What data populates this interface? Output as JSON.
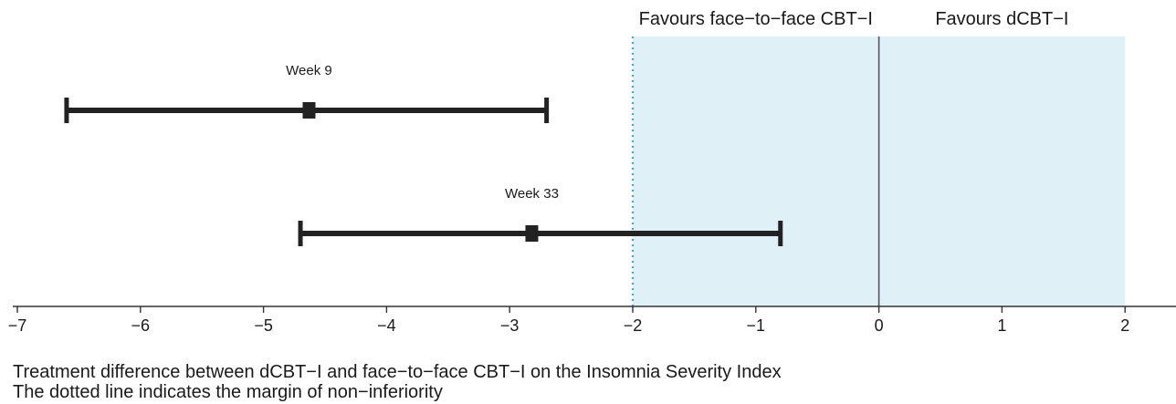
{
  "chart_data": {
    "type": "forest",
    "x_axis": {
      "range": [
        -7,
        2.4
      ],
      "ticks": [
        -7,
        -6,
        -5,
        -4,
        -3,
        -2,
        -1,
        0,
        1,
        2
      ],
      "tick_labels": [
        "−7",
        "−6",
        "−5",
        "−4",
        "−3",
        "−2",
        "−1",
        "0",
        "1",
        "2"
      ]
    },
    "shaded_region": {
      "from": -2,
      "to": 2,
      "color": "#dff0f7"
    },
    "non_inferiority_margin": {
      "x": -2,
      "style": "dotted",
      "color": "#3aa7d6"
    },
    "reference_line": {
      "x": 0,
      "color": "#555555"
    },
    "region_labels": [
      {
        "text": "Favours face−to−face CBT−I",
        "x": -1
      },
      {
        "text": "Favours dCBT−I",
        "x": 1
      }
    ],
    "series": [
      {
        "label": "Week 9",
        "estimate": -4.63,
        "ci_low": -6.6,
        "ci_high": -2.7
      },
      {
        "label": "Week 33",
        "estimate": -2.82,
        "ci_low": -4.7,
        "ci_high": -0.8
      }
    ],
    "mark_color": "#222222"
  },
  "captions": {
    "line1": "Treatment difference between dCBT−I and face−to−face CBT−I on the Insomnia Severity Index",
    "line2": "The dotted line indicates the margin of non−inferiority"
  }
}
